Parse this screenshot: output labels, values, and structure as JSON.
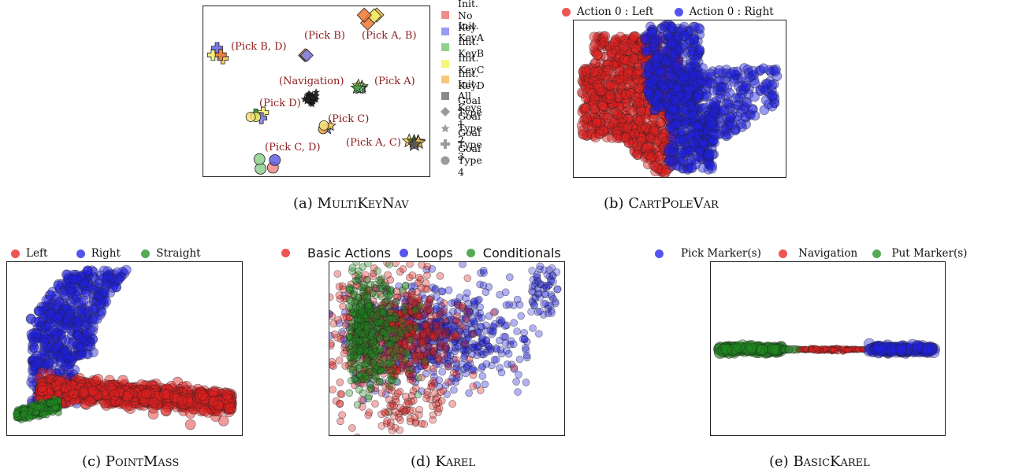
{
  "chart_data": [
    {
      "type": "scatter",
      "panel": "a",
      "caption_label": "(a)",
      "caption_name": "MultiKeyNav",
      "legend": [
        {
          "label": "Init. No Key",
          "color": "#f48a8a",
          "marker": "square"
        },
        {
          "label": "Init. KeyA",
          "color": "#9a9af5",
          "marker": "square"
        },
        {
          "label": "Init. KeyB",
          "color": "#8fcf8f",
          "marker": "square"
        },
        {
          "label": "Init. KeyC",
          "color": "#f5f57a",
          "marker": "square"
        },
        {
          "label": "Init. KeyD",
          "color": "#f8c87a",
          "marker": "square"
        },
        {
          "label": "Init. All Keys",
          "color": "#8a8a8a",
          "marker": "square"
        },
        {
          "label": "Goal Type 1",
          "color": "#9a9a9a",
          "marker": "diamond"
        },
        {
          "label": "Goal Type 2",
          "color": "#9a9a9a",
          "marker": "star"
        },
        {
          "label": "Goal Type 3",
          "color": "#9a9a9a",
          "marker": "plus"
        },
        {
          "label": "Goal Type 4",
          "color": "#9a9a9a",
          "marker": "circle"
        }
      ],
      "annotations": [
        "(Pick A, B)",
        "(Pick B)",
        "(Pick B, D)",
        "(Navigation)",
        "(Pick A)",
        "(Pick D)",
        "(Pick C)",
        "(Pick A, C)",
        "(Pick C, D)"
      ]
    },
    {
      "type": "scatter",
      "panel": "b",
      "caption_label": "(b)",
      "caption_name": "CartPoleVar",
      "series": [
        {
          "name": "Action 0 : Left",
          "color": "#e02020"
        },
        {
          "name": "Action 0 : Right",
          "color": "#2020e0"
        }
      ]
    },
    {
      "type": "scatter",
      "panel": "c",
      "caption_label": "(c)",
      "caption_name": "PointMass",
      "series": [
        {
          "name": "Left",
          "color": "#e02020"
        },
        {
          "name": "Right",
          "color": "#2020e0"
        },
        {
          "name": "Straight",
          "color": "#1f8a1f"
        }
      ]
    },
    {
      "type": "scatter",
      "panel": "d",
      "caption_label": "(d)",
      "caption_name": "Karel",
      "series": [
        {
          "name": "Basic Actions",
          "color": "#e02020"
        },
        {
          "name": "Loops",
          "color": "#2020e0"
        },
        {
          "name": "Conditionals",
          "color": "#1f8a1f"
        }
      ]
    },
    {
      "type": "scatter",
      "panel": "e",
      "caption_label": "(e)",
      "caption_name": "BasicKarel",
      "series": [
        {
          "name": "Pick Marker(s)",
          "color": "#2020e0"
        },
        {
          "name": "Navigation",
          "color": "#e02020"
        },
        {
          "name": "Put Marker(s)",
          "color": "#1f8a1f"
        }
      ]
    }
  ]
}
